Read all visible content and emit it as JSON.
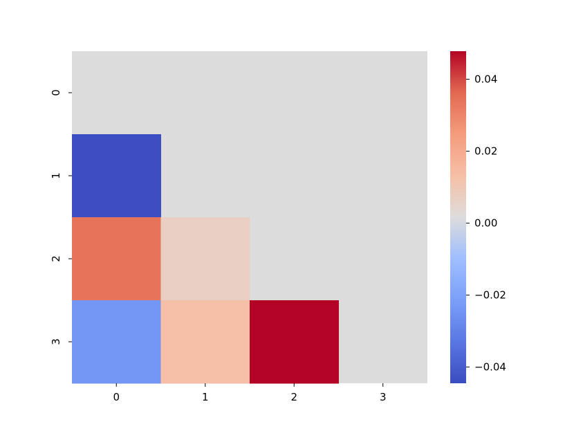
{
  "chart_data": {
    "type": "heatmap",
    "title": "",
    "xlabel": "",
    "ylabel": "",
    "x_tick_labels": [
      "0",
      "1",
      "2",
      "3"
    ],
    "y_tick_labels": [
      "0",
      "1",
      "2",
      "3"
    ],
    "masked_color": "#dcdcdc",
    "values": [
      [
        null,
        null,
        null,
        null
      ],
      [
        -0.044,
        null,
        null,
        null
      ],
      [
        0.034,
        0.007,
        null,
        null
      ],
      [
        -0.024,
        0.013,
        0.048,
        null
      ]
    ],
    "colormap": "coolwarm",
    "vmin": -0.0445,
    "vmax": 0.0478,
    "colorbar": {
      "ticks": [
        0.04,
        0.02,
        0.0,
        -0.02,
        -0.04
      ],
      "tick_labels": [
        "0.04",
        "0.02",
        "0.00",
        "−0.02",
        "−0.04"
      ]
    },
    "grid": false,
    "legend": "colorbar-right"
  }
}
